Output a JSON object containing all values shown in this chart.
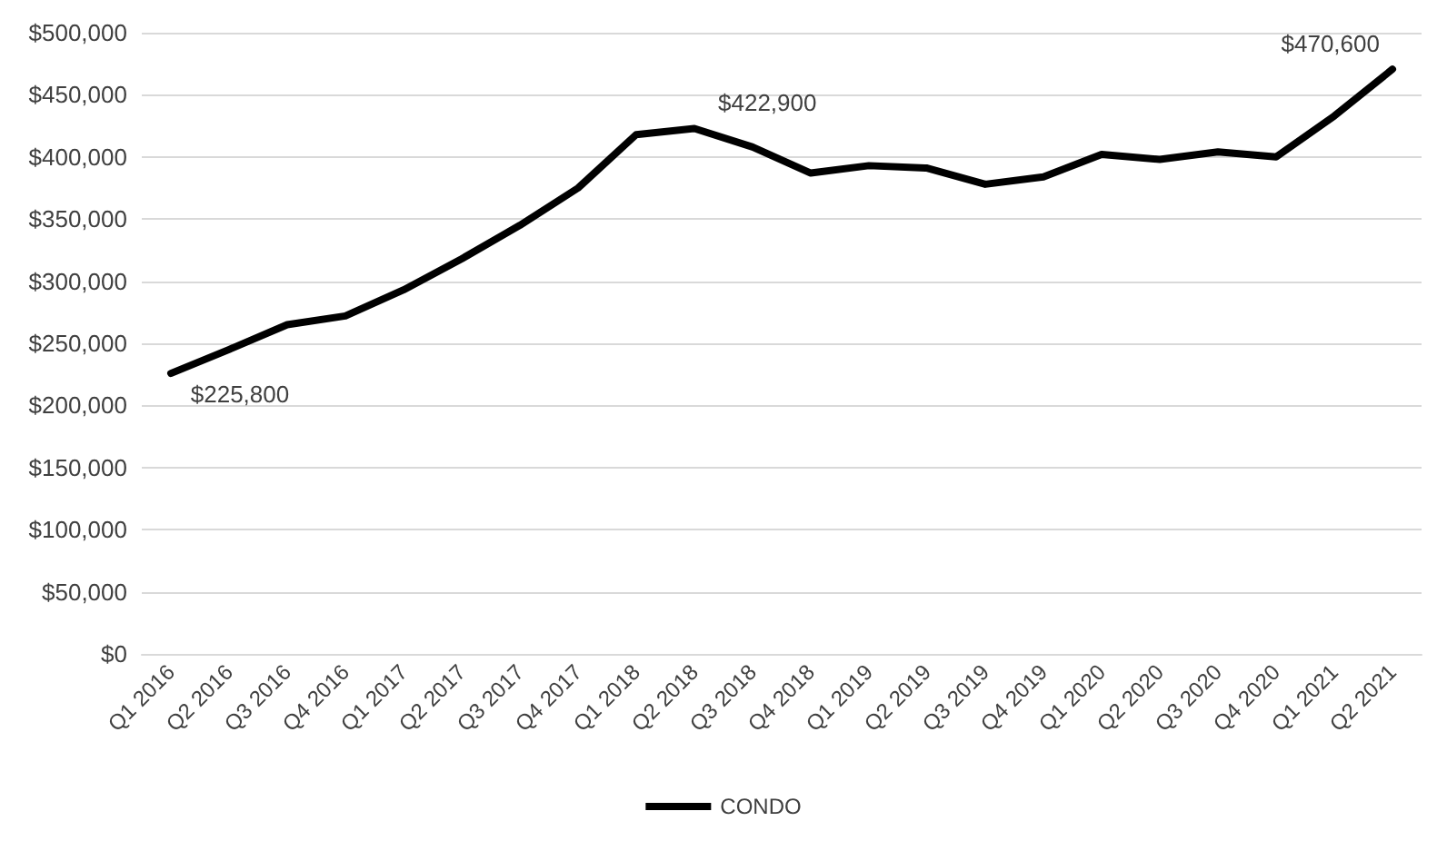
{
  "chart_data": {
    "type": "line",
    "categories": [
      "Q1 2016",
      "Q2 2016",
      "Q3 2016",
      "Q4 2016",
      "Q1 2017",
      "Q2 2017",
      "Q3 2017",
      "Q4 2017",
      "Q1 2018",
      "Q2 2018",
      "Q3 2018",
      "Q4 2018",
      "Q1 2019",
      "Q2 2019",
      "Q3 2019",
      "Q4 2019",
      "Q1 2020",
      "Q2 2020",
      "Q3 2020",
      "Q4 2020",
      "Q1 2021",
      "Q2 2021"
    ],
    "series": [
      {
        "name": "CONDO",
        "color": "#000000",
        "values": [
          225800,
          245000,
          265000,
          272000,
          293000,
          318000,
          345000,
          375000,
          418000,
          422900,
          408000,
          387000,
          393000,
          391000,
          378000,
          384000,
          402000,
          398000,
          404000,
          400000,
          433000,
          470600
        ],
        "value_labels": [
          "$225,800",
          null,
          null,
          null,
          null,
          null,
          null,
          null,
          null,
          "$422,900",
          null,
          null,
          null,
          null,
          null,
          null,
          null,
          null,
          null,
          null,
          null,
          "$470,600"
        ]
      }
    ],
    "ylim": [
      0,
      500000
    ],
    "yticks": [
      {
        "value": 0,
        "label": "$0"
      },
      {
        "value": 50000,
        "label": "$50,000"
      },
      {
        "value": 100000,
        "label": "$100,000"
      },
      {
        "value": 150000,
        "label": "$150,000"
      },
      {
        "value": 200000,
        "label": "$200,000"
      },
      {
        "value": 250000,
        "label": "$250,000"
      },
      {
        "value": 300000,
        "label": "$300,000"
      },
      {
        "value": 350000,
        "label": "$350,000"
      },
      {
        "value": 400000,
        "label": "$400,000"
      },
      {
        "value": 450000,
        "label": "$450,000"
      },
      {
        "value": 500000,
        "label": "$500,000"
      }
    ],
    "grid": "y",
    "legend": "bottom",
    "marker": "none",
    "line_style": "solid"
  }
}
